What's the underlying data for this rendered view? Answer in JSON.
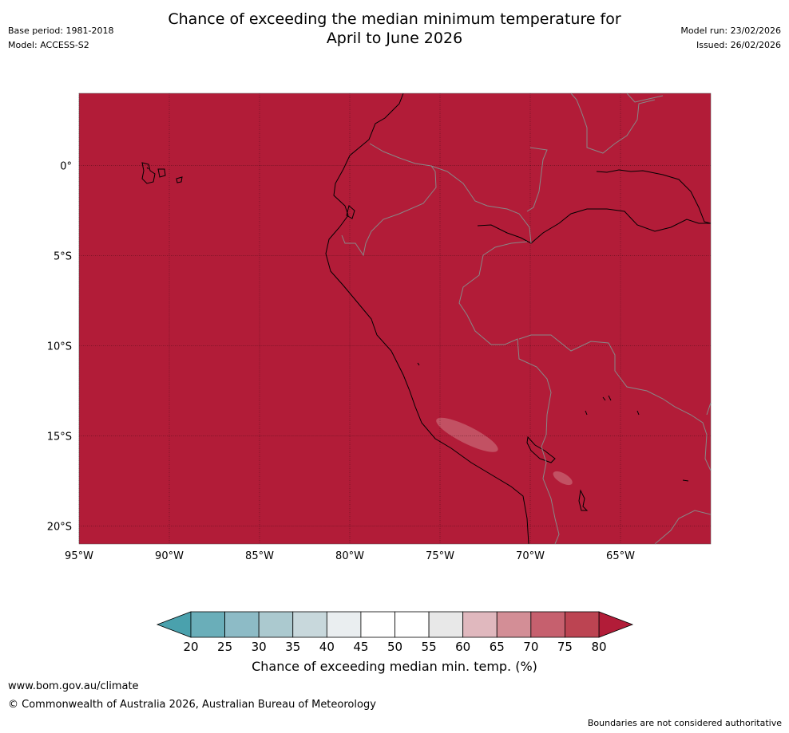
{
  "title": {
    "line1": "Chance of exceeding the median minimum temperature for",
    "line2": "April to June 2026"
  },
  "meta_left": {
    "base_period": "Base period: 1981-2018",
    "model": "Model: ACCESS-S2"
  },
  "meta_right": {
    "model_run": "Model run: 23/02/2026",
    "issued": "Issued: 26/02/2026"
  },
  "map": {
    "lon_range": [
      -95,
      -60
    ],
    "lat_range": [
      -21,
      4
    ],
    "background_value_band": "80+",
    "background_color": "#b21c38",
    "lat_ticks": [
      {
        "value": 0,
        "label": "0°"
      },
      {
        "value": -5,
        "label": "5°S"
      },
      {
        "value": -10,
        "label": "10°S"
      },
      {
        "value": -15,
        "label": "15°S"
      },
      {
        "value": -20,
        "label": "20°S"
      }
    ],
    "lon_ticks": [
      {
        "value": -95,
        "label": "95°W"
      },
      {
        "value": -90,
        "label": "90°W"
      },
      {
        "value": -85,
        "label": "85°W"
      },
      {
        "value": -80,
        "label": "80°W"
      },
      {
        "value": -75,
        "label": "75°W"
      },
      {
        "value": -70,
        "label": "70°W"
      },
      {
        "value": -65,
        "label": "65°W"
      }
    ],
    "anomaly_patches": [
      {
        "band": "70-75",
        "color": "#c45a6b",
        "lon_range": [
          -75.4,
          -71.6
        ],
        "lat_range": [
          -14.0,
          -15.9
        ]
      },
      {
        "band": "70-75",
        "color": "#c45a6b",
        "lon_range": [
          -68.8,
          -67.6
        ],
        "lat_range": [
          -17.0,
          -17.7
        ]
      }
    ]
  },
  "colorbar": {
    "ticks": [
      "20",
      "25",
      "30",
      "35",
      "40",
      "45",
      "50",
      "55",
      "60",
      "65",
      "70",
      "75",
      "80"
    ],
    "colors": [
      "#6aaeb9",
      "#8dbbc6",
      "#abc9cf",
      "#c8d8dc",
      "#eaeef0",
      "#ffffff",
      "#ffffff",
      "#e8e8e8",
      "#e0b8be",
      "#d38e96",
      "#c6606e",
      "#bc4452"
    ],
    "under_color": "#4aa1ad",
    "over_color": "#b21c38",
    "label": "Chance of exceeding median min. temp. (%)"
  },
  "footer": {
    "url": "www.bom.gov.au/climate",
    "copyright": "© Commonwealth of Australia 2026, Australian Bureau of Meteorology",
    "note": "Boundaries are not considered authoritative"
  }
}
